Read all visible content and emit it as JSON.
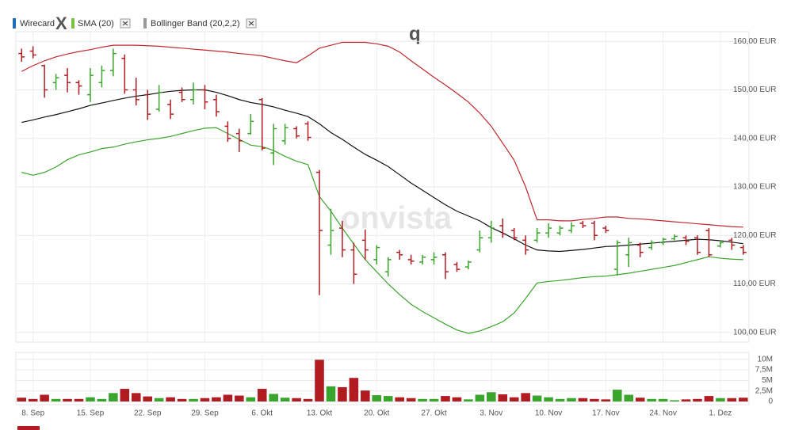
{
  "chart_data": {
    "type": "ohlc",
    "legend": [
      {
        "name": "Wirecard",
        "color": "#1f6db5"
      },
      {
        "name": "SMA (20)",
        "color": "#7ac142"
      },
      {
        "name": "Bollinger Band (20,2,2)",
        "color": "#999999"
      }
    ],
    "annotations": [
      {
        "text": "X",
        "color": "#e8262b"
      },
      {
        "text": "q",
        "color": "#e8262b"
      }
    ],
    "watermark": "onvista",
    "categories": [
      null,
      "8. Sep",
      null,
      null,
      null,
      null,
      "15. Sep",
      null,
      null,
      null,
      null,
      "22. Sep",
      null,
      null,
      null,
      null,
      "29. Sep",
      null,
      null,
      null,
      null,
      "6. Okt",
      null,
      null,
      null,
      null,
      "13. Okt",
      null,
      null,
      null,
      null,
      "20. Okt",
      null,
      null,
      null,
      null,
      "27. Okt",
      null,
      null,
      null,
      null,
      "3. Nov",
      null,
      null,
      null,
      null,
      "10. Nov",
      null,
      null,
      null,
      null,
      "17. Nov",
      null,
      null,
      null,
      null,
      "24. Nov",
      null,
      null,
      null,
      null,
      "1. Dez",
      null,
      null
    ],
    "up_color": "#3aa52c",
    "down_color": "#b01c22",
    "grid": true,
    "ylim": [
      98,
      162
    ],
    "yticks": [
      {
        "value": 100,
        "label": "100,00 EUR"
      },
      {
        "value": 110,
        "label": "110,00 EUR"
      },
      {
        "value": 120,
        "label": "120,00 EUR"
      },
      {
        "value": 130,
        "label": "130,00 EUR"
      },
      {
        "value": 140,
        "label": "140,00 EUR"
      },
      {
        "value": 150,
        "label": "150,00 EUR"
      },
      {
        "value": 160,
        "label": "160,00 EUR"
      }
    ],
    "open": [
      157.5,
      158.0,
      155.0,
      151.5,
      153.0,
      151.5,
      149.0,
      151.5,
      154.0,
      156.5,
      150.0,
      149.0,
      146.0,
      147.0,
      149.5,
      148.0,
      150.0,
      148.0,
      142.5,
      141.0,
      141.0,
      148.0,
      137.0,
      139.5,
      142.0,
      143.0,
      133.0,
      118.0,
      121.5,
      117.0,
      119.0,
      115.0,
      112.5,
      116.5,
      115.0,
      114.5,
      115.0,
      116.0,
      114.0,
      113.5,
      117.0,
      119.5,
      122.0,
      121.0,
      119.0,
      119.0,
      120.5,
      120.5,
      121.0,
      122.5,
      122.5,
      121.5,
      113.0,
      116.0,
      118.0,
      117.5,
      118.5,
      119.3,
      119.5,
      119.5,
      121.0,
      117.8,
      119.0,
      117.5
    ],
    "high": [
      158.5,
      159.0,
      155.2,
      153.3,
      154.5,
      152.0,
      154.5,
      155.0,
      158.5,
      157.3,
      152.5,
      150.0,
      151.0,
      148.0,
      150.5,
      151.5,
      151.0,
      149.0,
      143.5,
      142.0,
      145.0,
      148.3,
      143.0,
      143.0,
      142.5,
      143.5,
      133.5,
      125.5,
      123.0,
      118.5,
      121.2,
      118.0,
      115.5,
      117.0,
      116.0,
      116.0,
      116.5,
      116.5,
      114.5,
      114.8,
      121.0,
      123.0,
      123.5,
      121.5,
      120.0,
      121.5,
      122.5,
      122.0,
      122.7,
      123.0,
      123.0,
      122.0,
      119.0,
      119.5,
      118.5,
      119.0,
      119.5,
      120.2,
      120.0,
      120.0,
      121.5,
      119.0,
      119.5,
      118.0
    ],
    "low": [
      155.8,
      156.5,
      148.4,
      150.0,
      149.5,
      149.0,
      147.5,
      150.5,
      152.8,
      149.2,
      146.8,
      143.8,
      145.5,
      144.0,
      147.5,
      147.0,
      146.0,
      144.5,
      139.3,
      137.2,
      140.8,
      137.5,
      134.5,
      138.7,
      140.0,
      139.5,
      107.7,
      116.0,
      115.5,
      110.0,
      115.0,
      114.0,
      111.5,
      115.0,
      114.0,
      114.0,
      114.0,
      111.0,
      112.5,
      113.0,
      116.5,
      118.5,
      119.5,
      119.0,
      116.0,
      118.5,
      119.5,
      120.0,
      120.5,
      121.5,
      119.0,
      120.5,
      111.7,
      113.5,
      115.5,
      117.0,
      118.0,
      119.0,
      118.0,
      116.0,
      115.5,
      117.5,
      117.0,
      116.0
    ],
    "close": [
      156.8,
      157.2,
      150.0,
      152.5,
      151.5,
      150.8,
      153.0,
      154.0,
      157.5,
      150.0,
      148.0,
      145.0,
      149.5,
      145.0,
      148.0,
      150.0,
      147.5,
      145.5,
      140.0,
      139.5,
      143.5,
      138.0,
      142.0,
      142.2,
      140.5,
      140.2,
      121.0,
      121.0,
      117.0,
      112.0,
      117.0,
      117.5,
      115.0,
      116.0,
      114.7,
      115.5,
      115.5,
      112.5,
      113.0,
      114.5,
      119.5,
      121.5,
      120.3,
      119.5,
      117.0,
      120.5,
      121.5,
      121.5,
      122.0,
      122.0,
      120.0,
      121.0,
      118.5,
      118.5,
      116.5,
      118.5,
      119.2,
      119.8,
      118.8,
      116.5,
      116.0,
      118.5,
      118.0,
      116.5
    ],
    "lines": [
      {
        "color": "#111111",
        "values": [
          143.3,
          143.8,
          144.4,
          144.9,
          145.5,
          146.1,
          146.8,
          147.3,
          147.8,
          148.3,
          148.7,
          149.0,
          149.4,
          149.7,
          149.9,
          150.0,
          150.0,
          149.5,
          148.8,
          148.0,
          147.4,
          147.0,
          146.5,
          145.8,
          145.2,
          144.5,
          143.0,
          141.2,
          139.8,
          138.2,
          136.7,
          135.5,
          134.2,
          132.5,
          130.8,
          129.3,
          127.8,
          126.3,
          125.0,
          124.0,
          123.0,
          121.6,
          120.5,
          119.3,
          118.0,
          117.0,
          116.8,
          116.7,
          116.9,
          117.1,
          117.4,
          117.7,
          117.8,
          118.0,
          118.2,
          118.4,
          118.6,
          118.8,
          119.0,
          119.2,
          119.1,
          118.9,
          118.6,
          118.3
        ]
      },
      {
        "color": "#c0282d",
        "values": [
          153.8,
          155.0,
          156.0,
          156.8,
          157.4,
          157.9,
          158.3,
          158.8,
          159.2,
          159.2,
          159.2,
          159.1,
          159.0,
          158.8,
          158.6,
          158.4,
          158.2,
          158.0,
          157.8,
          157.5,
          157.3,
          157.0,
          156.5,
          156.0,
          155.6,
          157.0,
          158.6,
          159.2,
          159.8,
          159.8,
          159.8,
          159.5,
          159.0,
          157.8,
          156.0,
          154.3,
          152.6,
          151.0,
          149.3,
          147.5,
          145.2,
          142.5,
          139.0,
          135.5,
          130.0,
          123.2,
          123.2,
          123.0,
          123.0,
          123.3,
          123.5,
          123.8,
          123.8,
          123.5,
          123.4,
          123.2,
          123.0,
          122.8,
          122.6,
          122.4,
          122.2,
          122.0,
          121.8,
          121.7
        ]
      },
      {
        "color": "#3aa52c",
        "values": [
          133.0,
          132.4,
          133.0,
          134.1,
          135.6,
          136.6,
          137.2,
          137.9,
          138.2,
          138.8,
          139.3,
          139.7,
          140.0,
          140.4,
          141.0,
          141.6,
          142.1,
          142.2,
          141.0,
          139.8,
          138.6,
          138.3,
          137.5,
          136.3,
          135.3,
          134.6,
          128.0,
          125.0,
          121.5,
          118.2,
          115.0,
          112.5,
          110.0,
          107.8,
          105.8,
          104.3,
          103.0,
          101.7,
          100.5,
          99.8,
          100.3,
          101.2,
          102.2,
          104.0,
          107.0,
          110.2,
          110.5,
          110.7,
          111.0,
          111.3,
          111.5,
          111.6,
          111.9,
          112.2,
          112.6,
          113.0,
          113.4,
          113.8,
          114.4,
          115.0,
          115.6,
          115.3,
          115.1,
          115.0
        ]
      }
    ],
    "volume": [
      0.9,
      0.6,
      1.6,
      0.6,
      0.6,
      0.6,
      1.0,
      0.6,
      2.0,
      3.0,
      2.0,
      1.2,
      0.8,
      1.0,
      0.6,
      0.6,
      0.8,
      1.0,
      1.6,
      1.4,
      1.0,
      3.0,
      1.8,
      0.9,
      0.8,
      0.6,
      9.9,
      3.6,
      3.4,
      5.6,
      2.6,
      1.5,
      1.3,
      1.0,
      0.8,
      0.6,
      0.6,
      1.3,
      1.0,
      0.5,
      1.6,
      2.2,
      1.7,
      1.0,
      2.0,
      1.4,
      1.0,
      0.6,
      0.8,
      0.8,
      0.6,
      0.5,
      2.8,
      1.6,
      0.9,
      0.6,
      0.6,
      0.3,
      0.5,
      0.6,
      1.3,
      0.8,
      0.8,
      0.9
    ],
    "vlim": [
      0,
      10.9
    ],
    "vticks": [
      0,
      {
        "value": 2.5,
        "label": "2,5M"
      },
      {
        "value": 5,
        "label": "5M"
      },
      {
        "value": 7.5,
        "label": "7,5M"
      },
      {
        "value": 10,
        "label": "10M"
      }
    ]
  }
}
